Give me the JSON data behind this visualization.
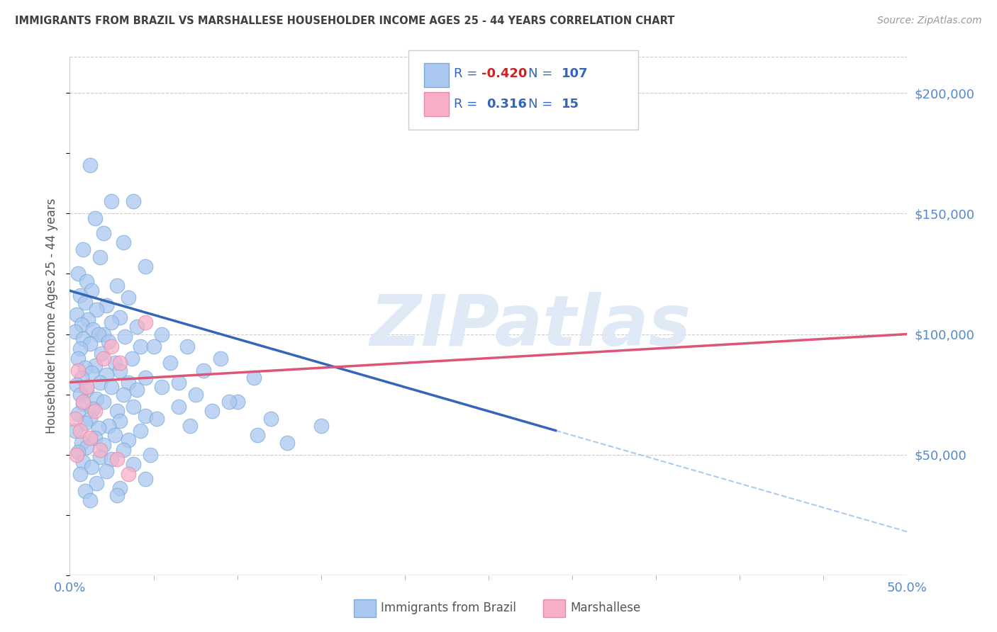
{
  "title": "IMMIGRANTS FROM BRAZIL VS MARSHALLESE HOUSEHOLDER INCOME AGES 25 - 44 YEARS CORRELATION CHART",
  "source": "Source: ZipAtlas.com",
  "ylabel": "Householder Income Ages 25 - 44 years",
  "watermark": "ZIPatlas",
  "brazil_scatter_color": "#aac8f0",
  "brazil_scatter_edge": "#7aaad8",
  "marshallese_scatter_color": "#f8b0c8",
  "marshallese_scatter_edge": "#e888a8",
  "brazil_line_color": "#3366bb",
  "marshallese_line_color": "#dd5577",
  "dashed_line_color": "#aaccee",
  "brazil_points": [
    [
      1.2,
      170000
    ],
    [
      2.5,
      155000
    ],
    [
      3.8,
      155000
    ],
    [
      1.5,
      148000
    ],
    [
      2.0,
      142000
    ],
    [
      3.2,
      138000
    ],
    [
      0.8,
      135000
    ],
    [
      1.8,
      132000
    ],
    [
      4.5,
      128000
    ],
    [
      0.5,
      125000
    ],
    [
      1.0,
      122000
    ],
    [
      2.8,
      120000
    ],
    [
      1.3,
      118000
    ],
    [
      0.6,
      116000
    ],
    [
      3.5,
      115000
    ],
    [
      0.9,
      113000
    ],
    [
      2.2,
      112000
    ],
    [
      1.6,
      110000
    ],
    [
      0.4,
      108000
    ],
    [
      3.0,
      107000
    ],
    [
      1.1,
      106000
    ],
    [
      2.5,
      105000
    ],
    [
      0.7,
      104000
    ],
    [
      4.0,
      103000
    ],
    [
      1.4,
      102000
    ],
    [
      0.3,
      101000
    ],
    [
      2.0,
      100000
    ],
    [
      1.7,
      100000
    ],
    [
      3.3,
      99000
    ],
    [
      0.8,
      98000
    ],
    [
      2.3,
      97000
    ],
    [
      1.2,
      96000
    ],
    [
      4.2,
      95000
    ],
    [
      0.6,
      94000
    ],
    [
      1.9,
      92000
    ],
    [
      3.7,
      90000
    ],
    [
      0.5,
      90000
    ],
    [
      2.7,
      88000
    ],
    [
      1.5,
      87000
    ],
    [
      0.9,
      86000
    ],
    [
      3.0,
      85000
    ],
    [
      1.3,
      84000
    ],
    [
      2.2,
      83000
    ],
    [
      0.7,
      82000
    ],
    [
      4.5,
      82000
    ],
    [
      1.8,
      80000
    ],
    [
      3.5,
      80000
    ],
    [
      0.4,
      79000
    ],
    [
      2.5,
      78000
    ],
    [
      1.0,
      77000
    ],
    [
      4.0,
      77000
    ],
    [
      0.6,
      75000
    ],
    [
      3.2,
      75000
    ],
    [
      1.6,
      73000
    ],
    [
      2.0,
      72000
    ],
    [
      0.8,
      71000
    ],
    [
      3.8,
      70000
    ],
    [
      1.4,
      69000
    ],
    [
      2.8,
      68000
    ],
    [
      0.5,
      67000
    ],
    [
      4.5,
      66000
    ],
    [
      1.2,
      65000
    ],
    [
      3.0,
      64000
    ],
    [
      0.9,
      63000
    ],
    [
      2.3,
      62000
    ],
    [
      1.7,
      61000
    ],
    [
      0.3,
      60000
    ],
    [
      4.2,
      60000
    ],
    [
      2.7,
      58000
    ],
    [
      1.5,
      57000
    ],
    [
      3.5,
      56000
    ],
    [
      0.7,
      55000
    ],
    [
      2.0,
      54000
    ],
    [
      1.0,
      53000
    ],
    [
      3.2,
      52000
    ],
    [
      0.5,
      51000
    ],
    [
      4.8,
      50000
    ],
    [
      1.8,
      49000
    ],
    [
      2.5,
      48000
    ],
    [
      0.8,
      47000
    ],
    [
      3.8,
      46000
    ],
    [
      1.3,
      45000
    ],
    [
      2.2,
      43000
    ],
    [
      0.6,
      42000
    ],
    [
      4.5,
      40000
    ],
    [
      1.6,
      38000
    ],
    [
      3.0,
      36000
    ],
    [
      0.9,
      35000
    ],
    [
      2.8,
      33000
    ],
    [
      1.2,
      31000
    ],
    [
      5.5,
      100000
    ],
    [
      7.0,
      95000
    ],
    [
      9.0,
      90000
    ],
    [
      6.0,
      88000
    ],
    [
      8.0,
      85000
    ],
    [
      11.0,
      82000
    ],
    [
      5.5,
      78000
    ],
    [
      7.5,
      75000
    ],
    [
      10.0,
      72000
    ],
    [
      6.5,
      70000
    ],
    [
      8.5,
      68000
    ],
    [
      12.0,
      65000
    ],
    [
      5.0,
      95000
    ],
    [
      6.5,
      80000
    ],
    [
      9.5,
      72000
    ],
    [
      5.2,
      65000
    ],
    [
      7.2,
      62000
    ],
    [
      11.2,
      58000
    ],
    [
      13.0,
      55000
    ],
    [
      15.0,
      62000
    ]
  ],
  "marshallese_points": [
    [
      0.5,
      85000
    ],
    [
      1.0,
      78000
    ],
    [
      0.8,
      72000
    ],
    [
      1.5,
      68000
    ],
    [
      0.3,
      65000
    ],
    [
      2.0,
      90000
    ],
    [
      0.6,
      60000
    ],
    [
      1.2,
      57000
    ],
    [
      2.5,
      95000
    ],
    [
      0.4,
      50000
    ],
    [
      1.8,
      52000
    ],
    [
      3.0,
      88000
    ],
    [
      4.5,
      105000
    ],
    [
      2.8,
      48000
    ],
    [
      3.5,
      42000
    ]
  ],
  "brazil_line_x0": 0.0,
  "brazil_line_y0": 118000,
  "brazil_line_x1": 29.0,
  "brazil_line_y1": 60000,
  "marshallese_line_x0": 0.0,
  "marshallese_line_y0": 80000,
  "marshallese_line_x1": 50.0,
  "marshallese_line_y1": 100000,
  "dashed_line_x0": 29.0,
  "dashed_line_y0": 60000,
  "dashed_line_x1": 50.0,
  "dashed_line_y1": 18000,
  "xlim": [
    0.0,
    50.0
  ],
  "ylim": [
    0,
    215000
  ],
  "yticks": [
    50000,
    100000,
    150000,
    200000
  ],
  "ytick_labels": [
    "$50,000",
    "$100,000",
    "$150,000",
    "$200,000"
  ],
  "background_color": "#ffffff",
  "title_color": "#404040",
  "axis_color": "#5588cc",
  "legend_R_color": "#3366bb",
  "legend_R_negative_color": "#cc2222",
  "legend_N_color": "#3366bb"
}
